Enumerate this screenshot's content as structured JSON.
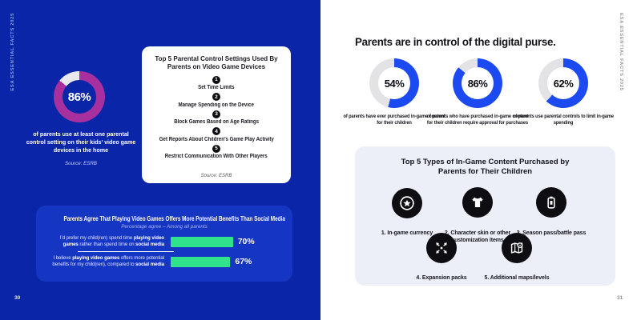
{
  "left_page": {
    "side_label": "ESA ESSENTIAL FACTS 2025",
    "page_number": "30",
    "stat": {
      "value": "86%",
      "pct": 86,
      "color": "#a7309e",
      "track": "#e9e9ed",
      "caption": "of parents use at least one parental control setting on their kids’ video game devices in the home",
      "source": "Source: ESRB"
    },
    "top5_card": {
      "title": "Top 5 Parental Control Settings Used By Parents on Video Game Devices",
      "items": [
        {
          "num": "1",
          "label": "Set Time Limits"
        },
        {
          "num": "2",
          "label": "Manage Spending on the Device"
        },
        {
          "num": "3",
          "label": "Block Games Based on Age Ratings"
        },
        {
          "num": "4",
          "label": "Get Reports About Children’s Game Play Activity"
        },
        {
          "num": "5",
          "label": "Restrict Communication With Other Players"
        }
      ],
      "source": "Source: ESRB"
    },
    "benefits_box": {
      "title": "Parents Agree That Playing Video Games Offers More Potential Benefits Than Social Media",
      "subtitle": "Percentage agree – Among all parents",
      "bar_color": "#30e28b",
      "rows": [
        {
          "n1": "I’d prefer my child(ren) spend time ",
          "b1": "playing video games",
          "n2": " rather than spend time on ",
          "b2": "social media",
          "value": "70%",
          "pct": 70
        },
        {
          "n1": "I believe ",
          "b1": "playing video games",
          "n2": " offers more potential benefits for my child(ren), compared to ",
          "b2": "social media",
          "value": "67%",
          "pct": 67
        }
      ]
    }
  },
  "right_page": {
    "side_label": "ESA ESSENTIAL FACTS 2025",
    "page_number": "31",
    "title": "Parents are in control of the digital purse.",
    "donuts": [
      {
        "value": "54%",
        "pct": 54,
        "color": "#1b4af0",
        "track": "#e3e3e6",
        "caption": "of parents have ever purchased in-game content for their children"
      },
      {
        "value": "86%",
        "pct": 86,
        "color": "#1b4af0",
        "track": "#e3e3e6",
        "caption": "of parents who have purchased in-game content for their children require approval for purchases"
      },
      {
        "value": "62%",
        "pct": 62,
        "color": "#1b4af0",
        "track": "#e3e3e6",
        "caption": "of parents use parental controls to limit in-game spending"
      }
    ],
    "purchases_card": {
      "title": "Top 5 Types of In-Game Content Purchased by Parents for Their Children",
      "items": [
        {
          "label": "1. In-game currency",
          "icon": "coin-icon"
        },
        {
          "label": "2. Character skin or other customization items",
          "icon": "tshirt-icon"
        },
        {
          "label": "3. Season pass/battle pass",
          "icon": "pass-icon"
        },
        {
          "label": "4. Expansion packs",
          "icon": "expand-arrows-icon"
        },
        {
          "label": "5. Additional maps/levels",
          "icon": "map-icon"
        }
      ]
    }
  },
  "chart_data": [
    {
      "type": "pie",
      "title": "Parents using at least one parental control setting",
      "labels": [
        "use parental controls",
        "remainder"
      ],
      "values": [
        86,
        14
      ],
      "colors": [
        "#a7309e",
        "#e9e9ed"
      ],
      "center_label": "86%"
    },
    {
      "type": "bar",
      "title": "Parents Agree That Playing Video Games Offers More Potential Benefits Than Social Media",
      "subtitle": "Percentage agree – Among all parents",
      "categories": [
        "I’d prefer my child(ren) spend time playing video games rather than spend time on social media",
        "I believe playing video games offers more potential benefits for my child(ren), compared to social media"
      ],
      "values": [
        70,
        67
      ],
      "unit": "%",
      "bar_color": "#30e28b",
      "xlim": [
        0,
        100
      ]
    },
    {
      "type": "pie",
      "title": "Parents who have ever purchased in-game content for their children",
      "labels": [
        "have purchased",
        "remainder"
      ],
      "values": [
        54,
        46
      ],
      "colors": [
        "#1b4af0",
        "#e3e3e6"
      ],
      "center_label": "54%"
    },
    {
      "type": "pie",
      "title": "Purchasing parents who require approval for purchases",
      "labels": [
        "require approval",
        "remainder"
      ],
      "values": [
        86,
        14
      ],
      "colors": [
        "#1b4af0",
        "#e3e3e6"
      ],
      "center_label": "86%"
    },
    {
      "type": "pie",
      "title": "Parents using parental controls to limit in-game spending",
      "labels": [
        "limit spending",
        "remainder"
      ],
      "values": [
        62,
        38
      ],
      "colors": [
        "#1b4af0",
        "#e3e3e6"
      ],
      "center_label": "62%"
    }
  ]
}
